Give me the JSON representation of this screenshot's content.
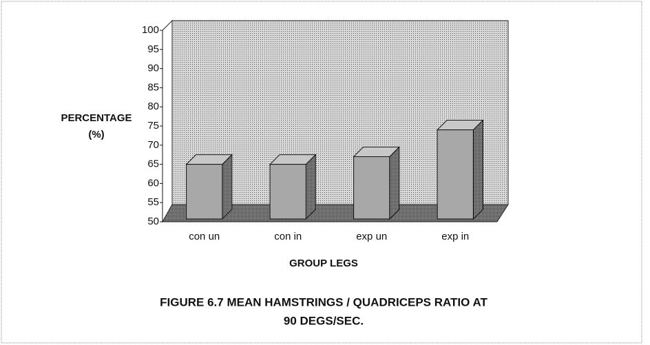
{
  "chart_data": {
    "type": "bar3d",
    "title": [
      "FIGURE 6.7 MEAN HAMSTRINGS / QUADRICEPS RATIO AT",
      "90 DEGS/SEC."
    ],
    "ylabel": [
      "PERCENTAGE",
      "(%)"
    ],
    "xlabel": "GROUP LEGS",
    "categories": [
      "con un",
      "con in",
      "exp un",
      "exp in"
    ],
    "values": [
      65,
      65,
      67,
      74
    ],
    "color": "#a8a8a8",
    "ylim": [
      50,
      100
    ],
    "yticks": [
      50,
      55,
      60,
      65,
      70,
      75,
      80,
      85,
      90,
      95,
      100
    ]
  }
}
